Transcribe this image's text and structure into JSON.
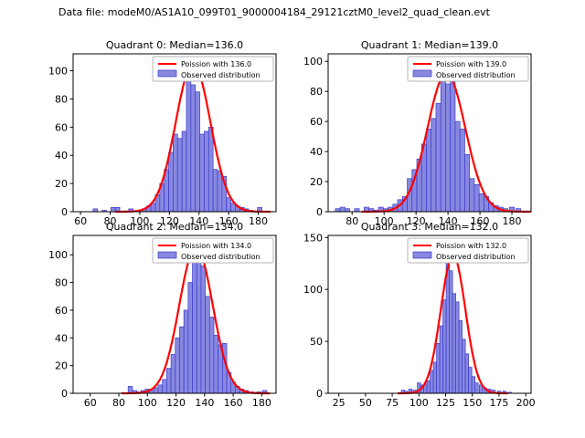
{
  "figure": {
    "title": "Data file: modeM0/AS1A10_099T01_9000004184_29121cztM0_level2_quad_clean.evt",
    "colors": {
      "bar_fill": "#8888e0",
      "bar_edge": "#3b3bcc",
      "curve": "#ff0000",
      "legend_border": "#b3b3b3",
      "axes": "#000000"
    }
  },
  "chart_data": [
    {
      "type": "bar",
      "subtype": "histogram",
      "title": "Quadrant 0: Median=136.0",
      "median": 136.0,
      "legend": [
        {
          "label": "Poission with 136.0",
          "marker": "line"
        },
        {
          "label": "Observed distribution",
          "marker": "patch"
        }
      ],
      "xlim": [
        55,
        192
      ],
      "ylim": [
        0,
        112
      ],
      "xticks": [
        60,
        80,
        100,
        120,
        140,
        160,
        180
      ],
      "yticks": [
        0,
        20,
        40,
        60,
        80,
        100
      ],
      "bin_width": 3,
      "bars": [
        [
          70,
          2
        ],
        [
          76,
          1
        ],
        [
          82,
          3
        ],
        [
          85,
          3
        ],
        [
          94,
          2
        ],
        [
          100,
          1
        ],
        [
          103,
          2
        ],
        [
          106,
          4
        ],
        [
          109,
          6
        ],
        [
          112,
          12
        ],
        [
          115,
          20
        ],
        [
          118,
          30
        ],
        [
          121,
          42
        ],
        [
          124,
          55
        ],
        [
          127,
          52
        ],
        [
          130,
          57
        ],
        [
          133,
          107
        ],
        [
          136,
          90
        ],
        [
          139,
          85
        ],
        [
          142,
          55
        ],
        [
          145,
          57
        ],
        [
          148,
          60
        ],
        [
          151,
          30
        ],
        [
          154,
          29
        ],
        [
          157,
          25
        ],
        [
          160,
          10
        ],
        [
          163,
          6
        ],
        [
          166,
          4
        ],
        [
          169,
          3
        ],
        [
          172,
          2
        ],
        [
          175,
          1
        ],
        [
          181,
          3
        ]
      ],
      "curve": {
        "shape": "poisson",
        "lambda": 136,
        "sigma": 11.7,
        "amplitude": 105
      },
      "grid": false,
      "legend_position": "upper right"
    },
    {
      "type": "bar",
      "subtype": "histogram",
      "title": "Quadrant 1: Median=139.0",
      "median": 139.0,
      "legend": [
        {
          "label": "Poission with 139.0",
          "marker": "line"
        },
        {
          "label": "Observed distribution",
          "marker": "patch"
        }
      ],
      "xlim": [
        65,
        192
      ],
      "ylim": [
        0,
        105
      ],
      "xticks": [
        80,
        100,
        120,
        140,
        160,
        180
      ],
      "yticks": [
        0,
        20,
        40,
        60,
        80,
        100
      ],
      "bin_width": 3,
      "bars": [
        [
          71,
          2
        ],
        [
          74,
          3
        ],
        [
          77,
          2
        ],
        [
          83,
          2
        ],
        [
          89,
          3
        ],
        [
          92,
          2
        ],
        [
          95,
          1
        ],
        [
          98,
          3
        ],
        [
          101,
          2
        ],
        [
          104,
          3
        ],
        [
          107,
          5
        ],
        [
          110,
          8
        ],
        [
          113,
          10
        ],
        [
          116,
          22
        ],
        [
          119,
          28
        ],
        [
          122,
          35
        ],
        [
          125,
          45
        ],
        [
          128,
          55
        ],
        [
          131,
          62
        ],
        [
          134,
          72
        ],
        [
          137,
          98
        ],
        [
          140,
          85
        ],
        [
          143,
          88
        ],
        [
          146,
          60
        ],
        [
          149,
          55
        ],
        [
          152,
          38
        ],
        [
          155,
          22
        ],
        [
          158,
          18
        ],
        [
          161,
          12
        ],
        [
          164,
          10
        ],
        [
          167,
          6
        ],
        [
          170,
          4
        ],
        [
          173,
          3
        ],
        [
          176,
          2
        ],
        [
          180,
          3
        ],
        [
          184,
          2
        ]
      ],
      "curve": {
        "shape": "poisson",
        "lambda": 139,
        "sigma": 11.8,
        "amplitude": 92
      },
      "grid": false,
      "legend_position": "upper right"
    },
    {
      "type": "bar",
      "subtype": "histogram",
      "title": "Quadrant 2: Median=134.0",
      "median": 134.0,
      "legend": [
        {
          "label": "Poission with 134.0",
          "marker": "line"
        },
        {
          "label": "Observed distribution",
          "marker": "patch"
        }
      ],
      "xlim": [
        48,
        190
      ],
      "ylim": [
        0,
        114
      ],
      "xticks": [
        60,
        80,
        100,
        120,
        140,
        160,
        180
      ],
      "yticks": [
        0,
        20,
        40,
        60,
        80,
        100
      ],
      "bin_width": 3,
      "bars": [
        [
          88,
          5
        ],
        [
          91,
          2
        ],
        [
          94,
          1
        ],
        [
          97,
          2
        ],
        [
          100,
          3
        ],
        [
          103,
          2
        ],
        [
          106,
          4
        ],
        [
          109,
          6
        ],
        [
          112,
          10
        ],
        [
          115,
          18
        ],
        [
          118,
          28
        ],
        [
          121,
          40
        ],
        [
          124,
          48
        ],
        [
          127,
          60
        ],
        [
          130,
          80
        ],
        [
          133,
          108
        ],
        [
          136,
          100
        ],
        [
          139,
          92
        ],
        [
          142,
          70
        ],
        [
          145,
          55
        ],
        [
          148,
          42
        ],
        [
          151,
          35
        ],
        [
          154,
          36
        ],
        [
          157,
          15
        ],
        [
          160,
          8
        ],
        [
          163,
          5
        ],
        [
          166,
          3
        ],
        [
          169,
          2
        ],
        [
          173,
          1
        ],
        [
          178,
          1
        ],
        [
          182,
          2
        ]
      ],
      "curve": {
        "shape": "poisson",
        "lambda": 134,
        "sigma": 11.6,
        "amplitude": 106
      },
      "grid": false,
      "legend_position": "upper right"
    },
    {
      "type": "bar",
      "subtype": "histogram",
      "title": "Quadrant 3: Median=132.0",
      "median": 132.0,
      "legend": [
        {
          "label": "Poission with 132.0",
          "marker": "line"
        },
        {
          "label": "Observed distribution",
          "marker": "patch"
        }
      ],
      "xlim": [
        15,
        205
      ],
      "ylim": [
        0,
        152
      ],
      "xticks": [
        25,
        50,
        75,
        100,
        125,
        150,
        175,
        200
      ],
      "yticks": [
        0,
        50,
        100,
        150
      ],
      "bin_width": 3,
      "bars": [
        [
          85,
          3
        ],
        [
          88,
          2
        ],
        [
          92,
          4
        ],
        [
          96,
          3
        ],
        [
          100,
          10
        ],
        [
          103,
          8
        ],
        [
          106,
          9
        ],
        [
          109,
          12
        ],
        [
          112,
          22
        ],
        [
          115,
          30
        ],
        [
          118,
          48
        ],
        [
          121,
          65
        ],
        [
          124,
          90
        ],
        [
          127,
          140
        ],
        [
          130,
          118
        ],
        [
          133,
          96
        ],
        [
          136,
          88
        ],
        [
          139,
          70
        ],
        [
          142,
          52
        ],
        [
          145,
          38
        ],
        [
          148,
          25
        ],
        [
          151,
          16
        ],
        [
          154,
          10
        ],
        [
          158,
          8
        ],
        [
          162,
          5
        ],
        [
          166,
          4
        ],
        [
          170,
          3
        ],
        [
          175,
          2
        ],
        [
          180,
          2
        ],
        [
          185,
          1
        ]
      ],
      "curve": {
        "shape": "poisson",
        "lambda": 132,
        "sigma": 11.5,
        "amplitude": 133
      },
      "grid": false,
      "legend_position": "upper right"
    }
  ]
}
